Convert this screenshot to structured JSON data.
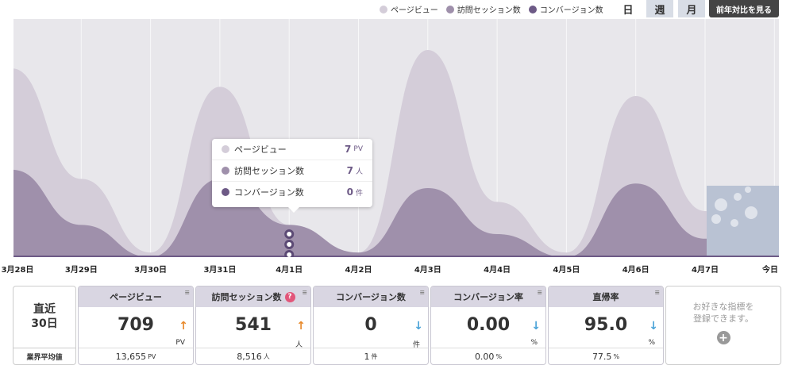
{
  "legend": [
    {
      "label": "ページビュー",
      "color": "#d4cdd9"
    },
    {
      "label": "訪問セッション数",
      "color": "#9f90ab"
    },
    {
      "label": "コンバージョン数",
      "color": "#6d5a86"
    }
  ],
  "period_tabs": {
    "day": "日",
    "week": "週",
    "month": "月"
  },
  "compare_button": "前年対比を見る",
  "chart_data": {
    "type": "area",
    "x": [
      "3月28日",
      "3月29日",
      "3月30日",
      "3月31日",
      "4月1日",
      "4月2日",
      "4月3日",
      "4月4日",
      "4月5日",
      "4月6日",
      "4月7日",
      "今日"
    ],
    "series": [
      {
        "name": "ページビュー",
        "color": "#d4cdd9",
        "values": [
          41,
          17,
          1,
          37,
          7,
          1,
          45,
          12,
          1,
          35,
          10,
          0
        ]
      },
      {
        "name": "訪問セッション数",
        "color": "#9f90ab",
        "values": [
          19,
          7,
          0,
          17,
          7,
          1,
          15,
          5,
          0,
          16,
          4,
          0
        ]
      },
      {
        "name": "コンバージョン数",
        "color": "#6d5a86",
        "values": [
          0,
          0,
          0,
          0,
          0,
          0,
          0,
          0,
          0,
          0,
          0,
          0
        ]
      }
    ],
    "ylim": [
      0,
      50
    ],
    "grid": true,
    "legend": "top-right"
  },
  "tooltip": {
    "rows": [
      {
        "label": "ページビュー",
        "value": "7",
        "unit": "PV",
        "color": "#d4cdd9"
      },
      {
        "label": "訪問セッション数",
        "value": "7",
        "unit": "人",
        "color": "#9f90ab"
      },
      {
        "label": "コンバージョン数",
        "value": "0",
        "unit": "件",
        "color": "#6d5a86"
      }
    ]
  },
  "period_card": {
    "line1": "直近",
    "line2": "30日",
    "footer": "業界平均値"
  },
  "metrics": [
    {
      "title": "ページビュー",
      "value": "709",
      "unit": "PV",
      "trend": "up",
      "trend_glyph": "↑",
      "avg": "13,655",
      "avg_unit": "PV",
      "menu": "≡",
      "help": false
    },
    {
      "title": "訪問セッション数",
      "value": "541",
      "unit": "人",
      "trend": "up",
      "trend_glyph": "↑",
      "avg": "8,516",
      "avg_unit": "人",
      "menu": "≡",
      "help": true
    },
    {
      "title": "コンバージョン数",
      "value": "0",
      "unit": "件",
      "trend": "down",
      "trend_glyph": "↓",
      "avg": "1",
      "avg_unit": "件",
      "menu": "≡",
      "help": false
    },
    {
      "title": "コンバージョン率",
      "value": "0.00",
      "unit": "%",
      "trend": "down",
      "trend_glyph": "↓",
      "avg": "0.00",
      "avg_unit": "%",
      "menu": "≡",
      "help": false
    },
    {
      "title": "直帰率",
      "value": "95.0",
      "unit": "%",
      "trend": "down",
      "trend_glyph": "↓",
      "avg": "77.5",
      "avg_unit": "%",
      "menu": "≡",
      "help": false
    }
  ],
  "help_icon": "?",
  "add_card": {
    "line1": "お好きな指標を",
    "line2": "登録できます。",
    "plus": "+"
  }
}
